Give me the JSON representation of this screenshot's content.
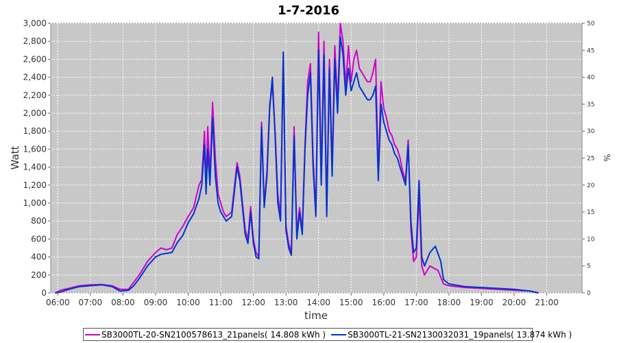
{
  "chart_data": {
    "type": "line",
    "title": "1-7-2016",
    "xlabel": "time",
    "ylabel": "Watt",
    "y2label": "%",
    "x_ticks": [
      "06:00",
      "07:00",
      "08:00",
      "09:00",
      "10:00",
      "11:00",
      "12:00",
      "13:00",
      "14:00",
      "15:00",
      "16:00",
      "17:00",
      "18:00",
      "19:00",
      "20:00",
      "21:00"
    ],
    "y_ticks": [
      "0",
      "200",
      "400",
      "600",
      "800",
      "1,000",
      "1,200",
      "1,400",
      "1,600",
      "1,800",
      "2,000",
      "2,200",
      "2,400",
      "2,600",
      "2,800",
      "3,000"
    ],
    "y2_ticks": [
      "0",
      "5",
      "10",
      "15",
      "20",
      "25",
      "30",
      "35",
      "40",
      "45",
      "50"
    ],
    "ylim": [
      0,
      3000
    ],
    "y2lim": [
      0,
      50
    ],
    "xlim": [
      "05:47",
      "22:05"
    ],
    "grid": true,
    "legend_position": "bottom",
    "series": [
      {
        "name": "SB3000TL-20-SN2100578613_21panels( 14.808 kWh )",
        "color": "#cc00cc",
        "points": [
          [
            "05:55",
            0
          ],
          [
            "06:05",
            30
          ],
          [
            "06:20",
            50
          ],
          [
            "06:40",
            80
          ],
          [
            "07:00",
            90
          ],
          [
            "07:20",
            95
          ],
          [
            "07:40",
            80
          ],
          [
            "07:55",
            40
          ],
          [
            "08:10",
            40
          ],
          [
            "08:20",
            120
          ],
          [
            "08:30",
            200
          ],
          [
            "08:45",
            350
          ],
          [
            "09:00",
            450
          ],
          [
            "09:10",
            500
          ],
          [
            "09:20",
            480
          ],
          [
            "09:30",
            500
          ],
          [
            "09:40",
            650
          ],
          [
            "09:50",
            740
          ],
          [
            "10:00",
            850
          ],
          [
            "10:10",
            950
          ],
          [
            "10:20",
            1200
          ],
          [
            "10:25",
            1260
          ],
          [
            "10:30",
            1800
          ],
          [
            "10:33",
            1200
          ],
          [
            "10:36",
            1850
          ],
          [
            "10:40",
            1300
          ],
          [
            "10:45",
            2120
          ],
          [
            "10:50",
            1500
          ],
          [
            "10:55",
            1100
          ],
          [
            "11:00",
            1000
          ],
          [
            "11:05",
            900
          ],
          [
            "11:10",
            850
          ],
          [
            "11:20",
            900
          ],
          [
            "11:30",
            1450
          ],
          [
            "11:35",
            1300
          ],
          [
            "11:40",
            1000
          ],
          [
            "11:45",
            700
          ],
          [
            "11:50",
            600
          ],
          [
            "11:55",
            960
          ],
          [
            "12:00",
            600
          ],
          [
            "12:05",
            450
          ],
          [
            "12:10",
            400
          ],
          [
            "12:15",
            1900
          ],
          [
            "12:20",
            1000
          ],
          [
            "12:25",
            1350
          ],
          [
            "12:30",
            2100
          ],
          [
            "12:35",
            2300
          ],
          [
            "12:40",
            1800
          ],
          [
            "12:45",
            1100
          ],
          [
            "12:50",
            850
          ],
          [
            "12:55",
            2600
          ],
          [
            "13:00",
            750
          ],
          [
            "13:05",
            550
          ],
          [
            "13:10",
            450
          ],
          [
            "13:15",
            1850
          ],
          [
            "13:20",
            650
          ],
          [
            "13:25",
            950
          ],
          [
            "13:30",
            700
          ],
          [
            "13:35",
            1650
          ],
          [
            "13:40",
            2350
          ],
          [
            "13:45",
            2550
          ],
          [
            "13:50",
            1500
          ],
          [
            "13:55",
            900
          ],
          [
            "14:00",
            2900
          ],
          [
            "14:05",
            1300
          ],
          [
            "14:10",
            2800
          ],
          [
            "14:15",
            900
          ],
          [
            "14:20",
            2600
          ],
          [
            "14:25",
            1400
          ],
          [
            "14:30",
            2750
          ],
          [
            "14:35",
            2100
          ],
          [
            "14:40",
            3000
          ],
          [
            "14:45",
            2800
          ],
          [
            "14:50",
            2300
          ],
          [
            "14:55",
            2750
          ],
          [
            "15:00",
            2350
          ],
          [
            "15:05",
            2600
          ],
          [
            "15:10",
            2700
          ],
          [
            "15:15",
            2500
          ],
          [
            "15:20",
            2450
          ],
          [
            "15:25",
            2400
          ],
          [
            "15:30",
            2350
          ],
          [
            "15:35",
            2350
          ],
          [
            "15:40",
            2450
          ],
          [
            "15:45",
            2600
          ],
          [
            "15:50",
            1300
          ],
          [
            "15:55",
            2350
          ],
          [
            "16:00",
            2050
          ],
          [
            "16:05",
            1950
          ],
          [
            "16:10",
            1800
          ],
          [
            "16:15",
            1750
          ],
          [
            "16:20",
            1650
          ],
          [
            "16:25",
            1600
          ],
          [
            "16:30",
            1500
          ],
          [
            "16:35",
            1350
          ],
          [
            "16:40",
            1250
          ],
          [
            "16:45",
            1700
          ],
          [
            "16:50",
            700
          ],
          [
            "16:55",
            350
          ],
          [
            "17:00",
            400
          ],
          [
            "17:05",
            1100
          ],
          [
            "17:10",
            300
          ],
          [
            "17:15",
            200
          ],
          [
            "17:25",
            300
          ],
          [
            "17:40",
            250
          ],
          [
            "17:50",
            100
          ],
          [
            "18:00",
            80
          ],
          [
            "18:30",
            60
          ],
          [
            "19:00",
            50
          ],
          [
            "19:30",
            40
          ],
          [
            "20:00",
            30
          ],
          [
            "20:30",
            20
          ],
          [
            "20:45",
            0
          ]
        ]
      },
      {
        "name": "SB3000TL-21-SN2130032031_19panels( 13.874 kWh )",
        "color": "#0033cc",
        "points": [
          [
            "05:55",
            0
          ],
          [
            "06:05",
            10
          ],
          [
            "06:20",
            40
          ],
          [
            "06:40",
            70
          ],
          [
            "07:00",
            80
          ],
          [
            "07:20",
            90
          ],
          [
            "07:40",
            70
          ],
          [
            "07:55",
            20
          ],
          [
            "08:10",
            30
          ],
          [
            "08:20",
            80
          ],
          [
            "08:30",
            160
          ],
          [
            "08:45",
            300
          ],
          [
            "09:00",
            400
          ],
          [
            "09:10",
            430
          ],
          [
            "09:20",
            440
          ],
          [
            "09:30",
            450
          ],
          [
            "09:40",
            560
          ],
          [
            "09:50",
            640
          ],
          [
            "10:00",
            780
          ],
          [
            "10:10",
            880
          ],
          [
            "10:20",
            1050
          ],
          [
            "10:25",
            1200
          ],
          [
            "10:30",
            1650
          ],
          [
            "10:33",
            1100
          ],
          [
            "10:36",
            1600
          ],
          [
            "10:40",
            1200
          ],
          [
            "10:45",
            1950
          ],
          [
            "10:50",
            1300
          ],
          [
            "10:55",
            1000
          ],
          [
            "11:00",
            900
          ],
          [
            "11:05",
            850
          ],
          [
            "11:10",
            800
          ],
          [
            "11:20",
            850
          ],
          [
            "11:30",
            1400
          ],
          [
            "11:35",
            1250
          ],
          [
            "11:40",
            950
          ],
          [
            "11:45",
            650
          ],
          [
            "11:50",
            550
          ],
          [
            "11:55",
            900
          ],
          [
            "12:00",
            550
          ],
          [
            "12:05",
            400
          ],
          [
            "12:10",
            380
          ],
          [
            "12:15",
            1850
          ],
          [
            "12:20",
            950
          ],
          [
            "12:25",
            1300
          ],
          [
            "12:30",
            2050
          ],
          [
            "12:35",
            2400
          ],
          [
            "12:40",
            1750
          ],
          [
            "12:45",
            1000
          ],
          [
            "12:50",
            800
          ],
          [
            "12:55",
            2680
          ],
          [
            "13:00",
            700
          ],
          [
            "13:05",
            500
          ],
          [
            "13:10",
            420
          ],
          [
            "13:15",
            1750
          ],
          [
            "13:20",
            600
          ],
          [
            "13:25",
            900
          ],
          [
            "13:30",
            650
          ],
          [
            "13:35",
            1600
          ],
          [
            "13:40",
            2200
          ],
          [
            "13:45",
            2450
          ],
          [
            "13:50",
            1400
          ],
          [
            "13:55",
            850
          ],
          [
            "14:00",
            2700
          ],
          [
            "14:05",
            1200
          ],
          [
            "14:10",
            2650
          ],
          [
            "14:15",
            850
          ],
          [
            "14:20",
            2500
          ],
          [
            "14:25",
            1300
          ],
          [
            "14:30",
            2600
          ],
          [
            "14:35",
            2000
          ],
          [
            "14:40",
            2850
          ],
          [
            "14:45",
            2650
          ],
          [
            "14:50",
            2200
          ],
          [
            "14:55",
            2500
          ],
          [
            "15:00",
            2250
          ],
          [
            "15:05",
            2350
          ],
          [
            "15:10",
            2450
          ],
          [
            "15:15",
            2300
          ],
          [
            "15:20",
            2250
          ],
          [
            "15:25",
            2200
          ],
          [
            "15:30",
            2150
          ],
          [
            "15:35",
            2150
          ],
          [
            "15:40",
            2200
          ],
          [
            "15:45",
            2300
          ],
          [
            "15:50",
            1250
          ],
          [
            "15:55",
            2100
          ],
          [
            "16:00",
            1900
          ],
          [
            "16:05",
            1800
          ],
          [
            "16:10",
            1700
          ],
          [
            "16:15",
            1650
          ],
          [
            "16:20",
            1550
          ],
          [
            "16:25",
            1500
          ],
          [
            "16:30",
            1400
          ],
          [
            "16:35",
            1300
          ],
          [
            "16:40",
            1200
          ],
          [
            "16:45",
            1650
          ],
          [
            "16:50",
            800
          ],
          [
            "16:55",
            450
          ],
          [
            "17:00",
            500
          ],
          [
            "17:05",
            1250
          ],
          [
            "17:10",
            400
          ],
          [
            "17:15",
            300
          ],
          [
            "17:25",
            450
          ],
          [
            "17:35",
            520
          ],
          [
            "17:45",
            350
          ],
          [
            "17:50",
            150
          ],
          [
            "18:00",
            100
          ],
          [
            "18:30",
            70
          ],
          [
            "19:00",
            60
          ],
          [
            "19:30",
            50
          ],
          [
            "20:00",
            40
          ],
          [
            "20:30",
            20
          ],
          [
            "20:45",
            0
          ]
        ]
      }
    ]
  }
}
